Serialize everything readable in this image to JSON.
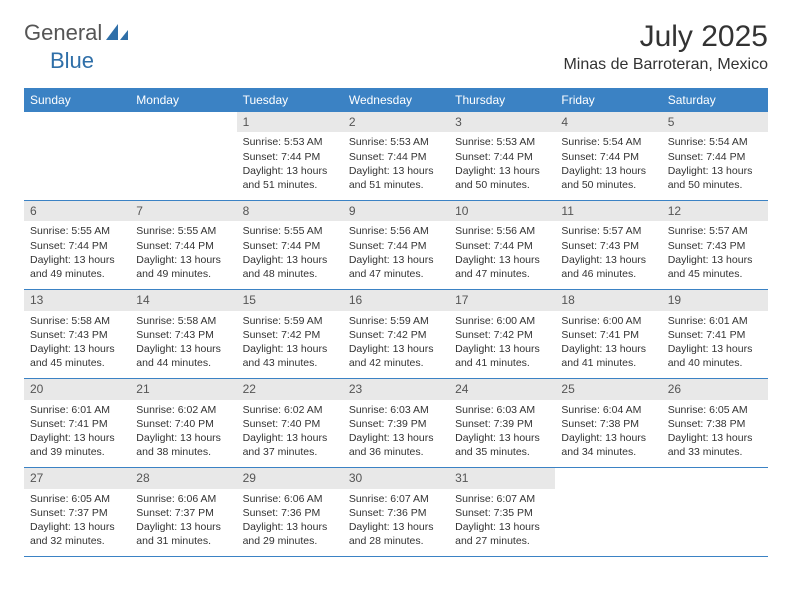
{
  "logo": {
    "text1": "General",
    "text2": "Blue",
    "text1_color": "#6b6b6b",
    "text2_color": "#2f6fa8",
    "icon_color": "#2f6fa8"
  },
  "title": "July 2025",
  "location": "Minas de Barroteran, Mexico",
  "header_bg": "#3b82c4",
  "header_fg": "#ffffff",
  "daynum_bg": "#e8e8e8",
  "border_color": "#3b82c4",
  "weekdays": [
    "Sunday",
    "Monday",
    "Tuesday",
    "Wednesday",
    "Thursday",
    "Friday",
    "Saturday"
  ],
  "weeks": [
    [
      null,
      null,
      {
        "n": "1",
        "sunrise": "5:53 AM",
        "sunset": "7:44 PM",
        "daylight": "13 hours and 51 minutes."
      },
      {
        "n": "2",
        "sunrise": "5:53 AM",
        "sunset": "7:44 PM",
        "daylight": "13 hours and 51 minutes."
      },
      {
        "n": "3",
        "sunrise": "5:53 AM",
        "sunset": "7:44 PM",
        "daylight": "13 hours and 50 minutes."
      },
      {
        "n": "4",
        "sunrise": "5:54 AM",
        "sunset": "7:44 PM",
        "daylight": "13 hours and 50 minutes."
      },
      {
        "n": "5",
        "sunrise": "5:54 AM",
        "sunset": "7:44 PM",
        "daylight": "13 hours and 50 minutes."
      }
    ],
    [
      {
        "n": "6",
        "sunrise": "5:55 AM",
        "sunset": "7:44 PM",
        "daylight": "13 hours and 49 minutes."
      },
      {
        "n": "7",
        "sunrise": "5:55 AM",
        "sunset": "7:44 PM",
        "daylight": "13 hours and 49 minutes."
      },
      {
        "n": "8",
        "sunrise": "5:55 AM",
        "sunset": "7:44 PM",
        "daylight": "13 hours and 48 minutes."
      },
      {
        "n": "9",
        "sunrise": "5:56 AM",
        "sunset": "7:44 PM",
        "daylight": "13 hours and 47 minutes."
      },
      {
        "n": "10",
        "sunrise": "5:56 AM",
        "sunset": "7:44 PM",
        "daylight": "13 hours and 47 minutes."
      },
      {
        "n": "11",
        "sunrise": "5:57 AM",
        "sunset": "7:43 PM",
        "daylight": "13 hours and 46 minutes."
      },
      {
        "n": "12",
        "sunrise": "5:57 AM",
        "sunset": "7:43 PM",
        "daylight": "13 hours and 45 minutes."
      }
    ],
    [
      {
        "n": "13",
        "sunrise": "5:58 AM",
        "sunset": "7:43 PM",
        "daylight": "13 hours and 45 minutes."
      },
      {
        "n": "14",
        "sunrise": "5:58 AM",
        "sunset": "7:43 PM",
        "daylight": "13 hours and 44 minutes."
      },
      {
        "n": "15",
        "sunrise": "5:59 AM",
        "sunset": "7:42 PM",
        "daylight": "13 hours and 43 minutes."
      },
      {
        "n": "16",
        "sunrise": "5:59 AM",
        "sunset": "7:42 PM",
        "daylight": "13 hours and 42 minutes."
      },
      {
        "n": "17",
        "sunrise": "6:00 AM",
        "sunset": "7:42 PM",
        "daylight": "13 hours and 41 minutes."
      },
      {
        "n": "18",
        "sunrise": "6:00 AM",
        "sunset": "7:41 PM",
        "daylight": "13 hours and 41 minutes."
      },
      {
        "n": "19",
        "sunrise": "6:01 AM",
        "sunset": "7:41 PM",
        "daylight": "13 hours and 40 minutes."
      }
    ],
    [
      {
        "n": "20",
        "sunrise": "6:01 AM",
        "sunset": "7:41 PM",
        "daylight": "13 hours and 39 minutes."
      },
      {
        "n": "21",
        "sunrise": "6:02 AM",
        "sunset": "7:40 PM",
        "daylight": "13 hours and 38 minutes."
      },
      {
        "n": "22",
        "sunrise": "6:02 AM",
        "sunset": "7:40 PM",
        "daylight": "13 hours and 37 minutes."
      },
      {
        "n": "23",
        "sunrise": "6:03 AM",
        "sunset": "7:39 PM",
        "daylight": "13 hours and 36 minutes."
      },
      {
        "n": "24",
        "sunrise": "6:03 AM",
        "sunset": "7:39 PM",
        "daylight": "13 hours and 35 minutes."
      },
      {
        "n": "25",
        "sunrise": "6:04 AM",
        "sunset": "7:38 PM",
        "daylight": "13 hours and 34 minutes."
      },
      {
        "n": "26",
        "sunrise": "6:05 AM",
        "sunset": "7:38 PM",
        "daylight": "13 hours and 33 minutes."
      }
    ],
    [
      {
        "n": "27",
        "sunrise": "6:05 AM",
        "sunset": "7:37 PM",
        "daylight": "13 hours and 32 minutes."
      },
      {
        "n": "28",
        "sunrise": "6:06 AM",
        "sunset": "7:37 PM",
        "daylight": "13 hours and 31 minutes."
      },
      {
        "n": "29",
        "sunrise": "6:06 AM",
        "sunset": "7:36 PM",
        "daylight": "13 hours and 29 minutes."
      },
      {
        "n": "30",
        "sunrise": "6:07 AM",
        "sunset": "7:36 PM",
        "daylight": "13 hours and 28 minutes."
      },
      {
        "n": "31",
        "sunrise": "6:07 AM",
        "sunset": "7:35 PM",
        "daylight": "13 hours and 27 minutes."
      },
      null,
      null
    ]
  ],
  "labels": {
    "sunrise": "Sunrise:",
    "sunset": "Sunset:",
    "daylight": "Daylight:"
  }
}
